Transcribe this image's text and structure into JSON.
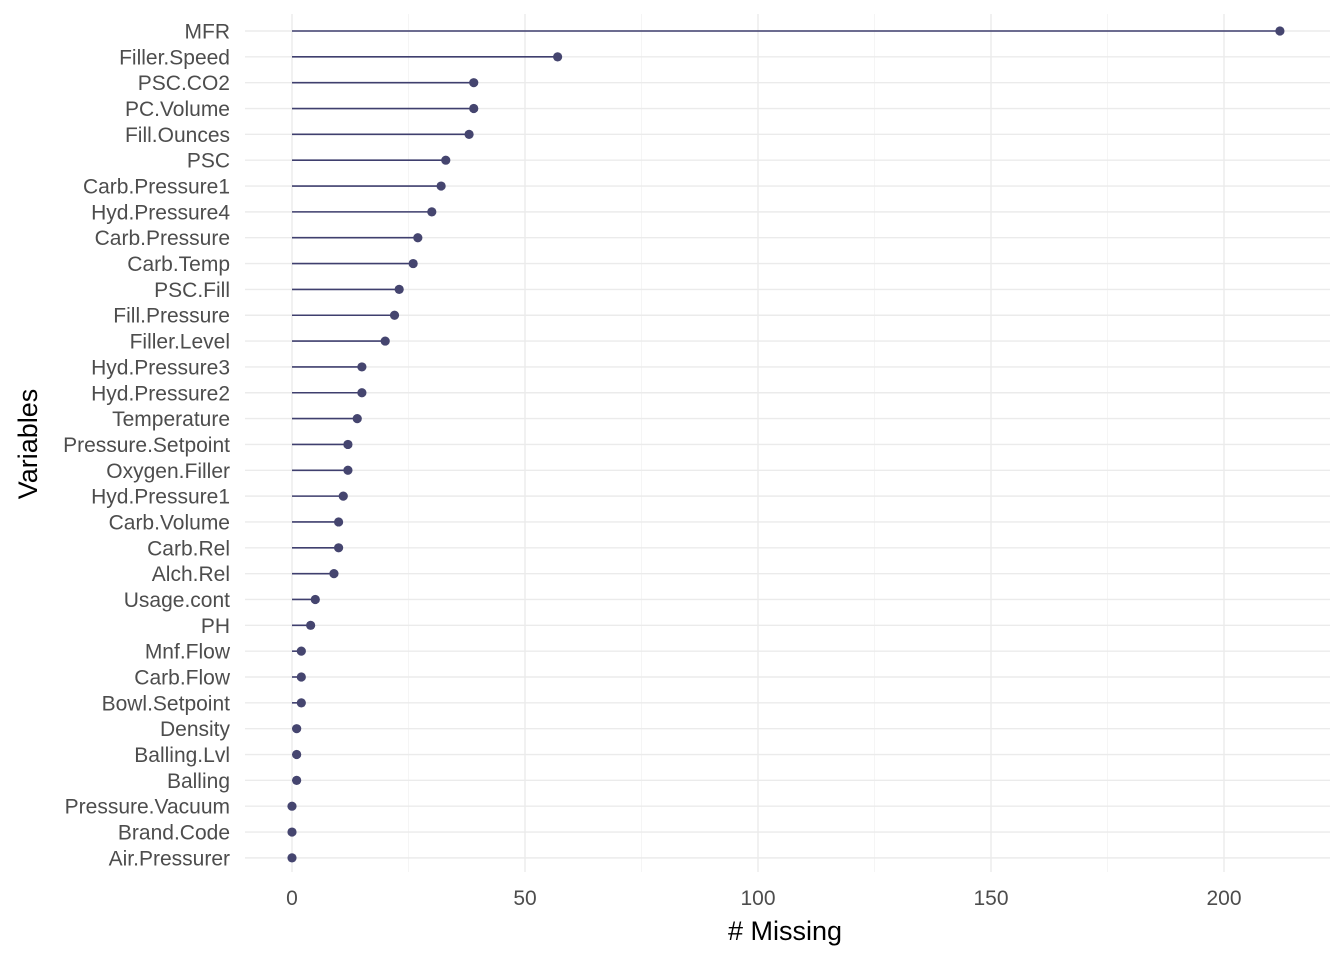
{
  "chart_data": {
    "type": "lollipop",
    "title": "",
    "xlabel": "# Missing",
    "ylabel": "Variables",
    "xlim": [
      -10,
      223
    ],
    "x_ticks": [
      0,
      50,
      100,
      150,
      200
    ],
    "grid": true,
    "legend": "none",
    "color": "#45456f",
    "categories": [
      "MFR",
      "Filler.Speed",
      "PSC.CO2",
      "PC.Volume",
      "Fill.Ounces",
      "PSC",
      "Carb.Pressure1",
      "Hyd.Pressure4",
      "Carb.Pressure",
      "Carb.Temp",
      "PSC.Fill",
      "Fill.Pressure",
      "Filler.Level",
      "Hyd.Pressure3",
      "Hyd.Pressure2",
      "Temperature",
      "Pressure.Setpoint",
      "Oxygen.Filler",
      "Hyd.Pressure1",
      "Carb.Volume",
      "Carb.Rel",
      "Alch.Rel",
      "Usage.cont",
      "PH",
      "Mnf.Flow",
      "Carb.Flow",
      "Bowl.Setpoint",
      "Density",
      "Balling.Lvl",
      "Balling",
      "Pressure.Vacuum",
      "Brand.Code",
      "Air.Pressurer"
    ],
    "values": [
      212,
      57,
      39,
      39,
      38,
      33,
      32,
      30,
      27,
      26,
      23,
      22,
      20,
      15,
      15,
      14,
      12,
      12,
      11,
      10,
      10,
      9,
      5,
      4,
      2,
      2,
      2,
      1,
      1,
      1,
      0,
      0,
      0
    ]
  }
}
